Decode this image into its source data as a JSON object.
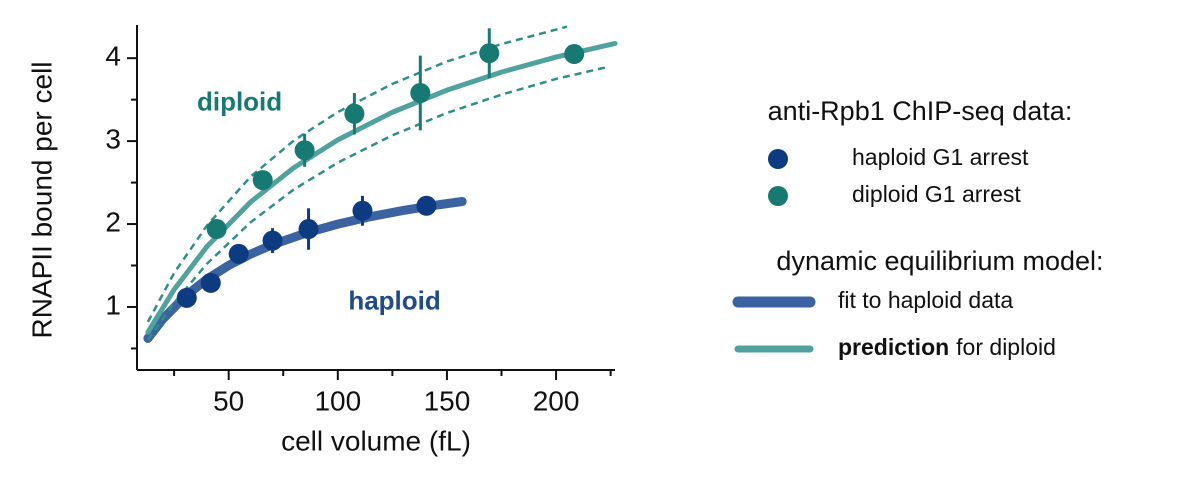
{
  "chart_data": {
    "type": "line",
    "xlabel": "cell volume (fL)",
    "ylabel": "RNAPII bound per cell",
    "xlim": [
      8,
      227
    ],
    "ylim": [
      0.24,
      4.4
    ],
    "xticks": [
      50,
      100,
      150,
      200
    ],
    "yticks": [
      1,
      2,
      3,
      4
    ],
    "xminor": [
      25,
      75,
      125,
      175,
      225
    ],
    "yminor": [
      0.5,
      1.5,
      2.5,
      3.5
    ],
    "legend_titles": [
      "anti-Rpb1 ChIP-seq data:",
      "dynamic equilibrium model:"
    ],
    "annotations": [
      {
        "text": "diploid",
        "x": 55,
        "y": 3.45,
        "color": "#167a73"
      },
      {
        "text": "haploid",
        "x": 126,
        "y": 1.05,
        "color": "#1f4a8c"
      }
    ],
    "series": [
      {
        "name": "haploid G1 arrest",
        "kind": "scatter",
        "color": "#0d3b82",
        "legend": 0,
        "x": [
          30.8,
          41.8,
          54.6,
          70.1,
          86.6,
          111.3,
          140.6
        ],
        "values": [
          1.11,
          1.29,
          1.64,
          1.8,
          1.94,
          2.16,
          2.22
        ],
        "errors": [
          0.1,
          0.1,
          0.1,
          0.15,
          0.25,
          0.18,
          0.08
        ]
      },
      {
        "name": "diploid G1 arrest",
        "kind": "scatter",
        "color": "#177a72",
        "legend": 0,
        "x": [
          44.5,
          65.6,
          84.8,
          107.6,
          137.8,
          169.4,
          208.3
        ],
        "values": [
          1.94,
          2.53,
          2.89,
          3.33,
          3.58,
          4.06,
          4.05
        ],
        "errors": [
          0.1,
          0.1,
          0.2,
          0.25,
          0.45,
          0.3,
          0.08
        ]
      },
      {
        "name": "fit to haploid data",
        "kind": "line",
        "color": "#3b62a1",
        "width": 9,
        "legend": 1,
        "x": [
          13,
          20,
          30,
          40,
          50,
          60,
          70,
          85,
          100,
          115,
          130,
          145,
          157
        ],
        "values": [
          0.621,
          0.859,
          1.127,
          1.335,
          1.501,
          1.637,
          1.75,
          1.888,
          1.999,
          2.089,
          2.164,
          2.228,
          2.272
        ]
      },
      {
        "name_bold": "prediction",
        "name": "for diploid",
        "kind": "line",
        "color": "#4fa29d",
        "width": 5,
        "legend": 1,
        "x": [
          13,
          25,
          40,
          60,
          80,
          100,
          125,
          150,
          175,
          200,
          227
        ],
        "values": [
          0.696,
          1.21,
          1.727,
          2.264,
          2.682,
          3.015,
          3.348,
          3.614,
          3.832,
          4.013,
          4.177
        ]
      },
      {
        "kind": "line",
        "color": "#2e8f87",
        "width": 2.5,
        "dashed": true,
        "x": [
          13,
          25,
          40,
          60,
          80,
          100,
          125,
          150,
          175,
          205
        ],
        "values": [
          0.82,
          1.41,
          1.98,
          2.57,
          3.01,
          3.35,
          3.69,
          3.96,
          4.17,
          4.38
        ]
      },
      {
        "kind": "line",
        "color": "#2e8f87",
        "width": 2.5,
        "dashed": true,
        "x": [
          13,
          25,
          40,
          60,
          80,
          100,
          125,
          150,
          175,
          200,
          223
        ],
        "values": [
          0.6,
          1.05,
          1.52,
          2.02,
          2.42,
          2.74,
          3.07,
          3.34,
          3.56,
          3.75,
          3.89
        ]
      }
    ]
  }
}
